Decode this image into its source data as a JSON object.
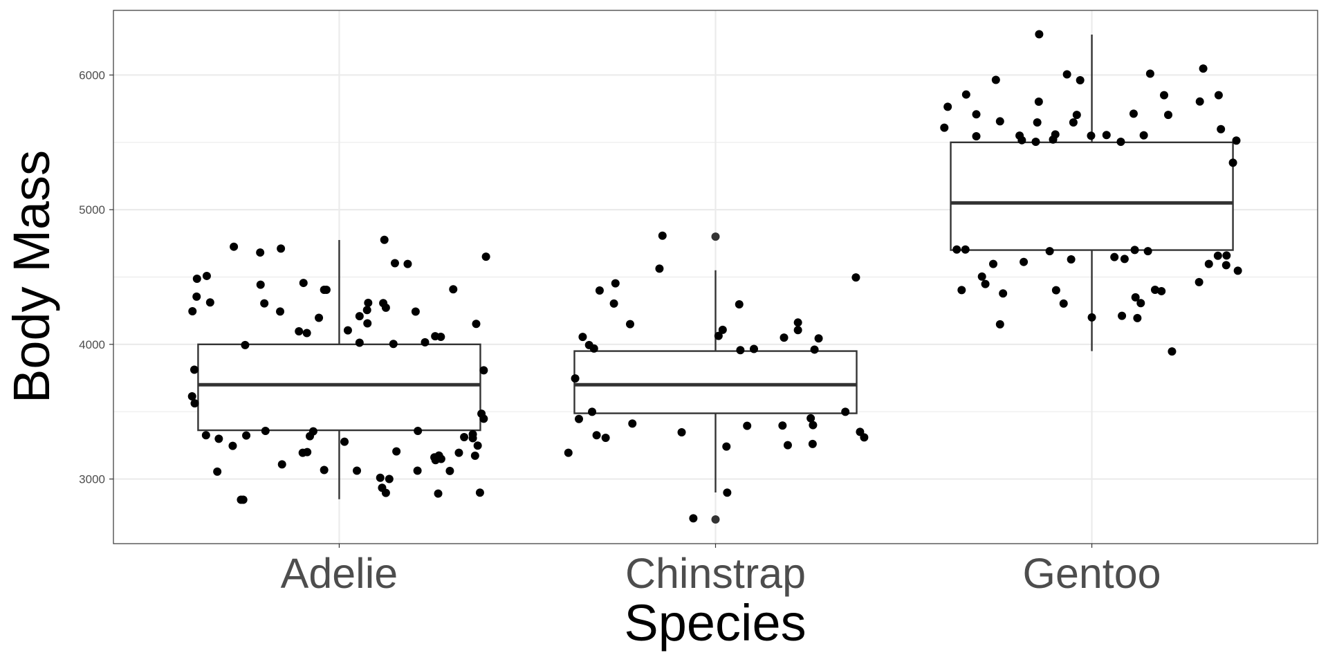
{
  "chart_data": {
    "type": "boxplot",
    "title": "",
    "xlabel": "Species",
    "ylabel": "Body Mass",
    "categories": [
      "Adelie",
      "Chinstrap",
      "Gentoo"
    ],
    "ylim": [
      2520,
      6480
    ],
    "xlim": [
      0.4,
      3.6
    ],
    "yticks": [
      3000,
      4000,
      5000,
      6000
    ],
    "ytick_labels": [
      "3000",
      "4000",
      "5000",
      "6000"
    ],
    "grid": true,
    "theme": "bw",
    "colors": {
      "box": "#333333",
      "point": "#000000",
      "outlier": "#333333",
      "grid": "#ebebeb",
      "tick_text": "#4d4d4d"
    },
    "boxes": [
      {
        "category": "Adelie",
        "lower_whisker": 2850,
        "q1": 3362,
        "median": 3700,
        "q3": 4000,
        "upper_whisker": 4775,
        "outliers": []
      },
      {
        "category": "Chinstrap",
        "lower_whisker": 2900,
        "q1": 3488,
        "median": 3700,
        "q3": 3950,
        "upper_whisker": 4550,
        "outliers": [
          4800,
          2700
        ]
      },
      {
        "category": "Gentoo",
        "lower_whisker": 3950,
        "q1": 4700,
        "median": 5050,
        "q3": 5500,
        "upper_whisker": 6300,
        "outliers": []
      }
    ],
    "jitter_points": {
      "Adelie": [
        [
          -0.28,
          4725
        ],
        [
          -0.21,
          4682
        ],
        [
          -0.155,
          4711
        ],
        [
          0.12,
          4776
        ],
        [
          0.39,
          4651
        ],
        [
          0.148,
          4603
        ],
        [
          0.182,
          4597
        ],
        [
          -0.378,
          4487
        ],
        [
          -0.352,
          4508
        ],
        [
          -0.209,
          4443
        ],
        [
          -0.095,
          4456
        ],
        [
          -0.04,
          4405
        ],
        [
          -0.034,
          4405
        ],
        [
          0.303,
          4409
        ],
        [
          -0.379,
          4354
        ],
        [
          -0.343,
          4311
        ],
        [
          -0.39,
          4246
        ],
        [
          -0.199,
          4304
        ],
        [
          -0.157,
          4244
        ],
        [
          0.077,
          4308
        ],
        [
          0.074,
          4255
        ],
        [
          0.117,
          4306
        ],
        [
          0.124,
          4272
        ],
        [
          0.203,
          4243
        ],
        [
          0.054,
          4209
        ],
        [
          -0.054,
          4197
        ],
        [
          0.075,
          4156
        ],
        [
          -0.107,
          4097
        ],
        [
          -0.086,
          4084
        ],
        [
          0.023,
          4104
        ],
        [
          0.364,
          4152
        ],
        [
          0.255,
          4060
        ],
        [
          0.27,
          4056
        ],
        [
          -0.25,
          3995
        ],
        [
          0.054,
          4012
        ],
        [
          0.144,
          4003
        ],
        [
          0.228,
          4015
        ],
        [
          -0.385,
          3812
        ],
        [
          0.384,
          3807
        ],
        [
          -0.391,
          3614
        ],
        [
          -0.384,
          3562
        ],
        [
          0.384,
          3448
        ],
        [
          0.378,
          3485
        ],
        [
          -0.354,
          3325
        ],
        [
          -0.32,
          3299
        ],
        [
          -0.283,
          3246
        ],
        [
          -0.247,
          3323
        ],
        [
          -0.196,
          3357
        ],
        [
          -0.078,
          3318
        ],
        [
          -0.069,
          3354
        ],
        [
          0.014,
          3277
        ],
        [
          0.209,
          3357
        ],
        [
          0.332,
          3311
        ],
        [
          0.355,
          3332
        ],
        [
          0.355,
          3303
        ],
        [
          0.368,
          3248
        ],
        [
          -0.097,
          3195
        ],
        [
          -0.085,
          3200
        ],
        [
          0.152,
          3205
        ],
        [
          0.253,
          3161
        ],
        [
          0.265,
          3174
        ],
        [
          0.271,
          3149
        ],
        [
          0.256,
          3140
        ],
        [
          0.318,
          3195
        ],
        [
          0.361,
          3173
        ],
        [
          -0.152,
          3109
        ],
        [
          -0.324,
          3055
        ],
        [
          -0.04,
          3067
        ],
        [
          0.047,
          3062
        ],
        [
          0.208,
          3062
        ],
        [
          0.294,
          3060
        ],
        [
          0.109,
          3009
        ],
        [
          0.133,
          3000
        ],
        [
          0.114,
          2935
        ],
        [
          0.124,
          2897
        ],
        [
          0.263,
          2892
        ],
        [
          0.374,
          2899
        ],
        [
          -0.261,
          2846
        ],
        [
          -0.255,
          2846
        ]
      ],
      "Chinstrap": [
        [
          -0.141,
          4807
        ],
        [
          -0.149,
          4562
        ],
        [
          0.373,
          4497
        ],
        [
          -0.266,
          4453
        ],
        [
          -0.308,
          4400
        ],
        [
          -0.27,
          4303
        ],
        [
          0.063,
          4297
        ],
        [
          -0.227,
          4150
        ],
        [
          0.219,
          4162
        ],
        [
          0.219,
          4106
        ],
        [
          0.019,
          4108
        ],
        [
          0.008,
          4063
        ],
        [
          -0.353,
          4055
        ],
        [
          0.182,
          4050
        ],
        [
          0.274,
          4044
        ],
        [
          -0.336,
          3995
        ],
        [
          -0.323,
          3969
        ],
        [
          0.066,
          3957
        ],
        [
          0.102,
          3966
        ],
        [
          0.263,
          3961
        ],
        [
          -0.373,
          3747
        ],
        [
          -0.328,
          3499
        ],
        [
          0.345,
          3499
        ],
        [
          -0.363,
          3446
        ],
        [
          -0.221,
          3412
        ],
        [
          0.084,
          3395
        ],
        [
          0.178,
          3397
        ],
        [
          0.253,
          3451
        ],
        [
          0.259,
          3400
        ],
        [
          -0.316,
          3325
        ],
        [
          -0.292,
          3306
        ],
        [
          -0.09,
          3347
        ],
        [
          0.384,
          3350
        ],
        [
          0.395,
          3309
        ],
        [
          -0.391,
          3195
        ],
        [
          0.029,
          3241
        ],
        [
          0.192,
          3251
        ],
        [
          0.258,
          3260
        ],
        [
          0.031,
          2899
        ],
        [
          -0.059,
          2708
        ]
      ],
      "Gentoo": [
        [
          -0.14,
          6303
        ],
        [
          0.296,
          6048
        ],
        [
          -0.066,
          6005
        ],
        [
          0.155,
          6010
        ],
        [
          -0.255,
          5964
        ],
        [
          -0.031,
          5961
        ],
        [
          -0.334,
          5855
        ],
        [
          0.192,
          5850
        ],
        [
          0.337,
          5850
        ],
        [
          -0.383,
          5764
        ],
        [
          -0.141,
          5802
        ],
        [
          0.287,
          5803
        ],
        [
          -0.307,
          5708
        ],
        [
          -0.04,
          5704
        ],
        [
          0.111,
          5713
        ],
        [
          0.203,
          5704
        ],
        [
          -0.244,
          5656
        ],
        [
          -0.145,
          5648
        ],
        [
          -0.049,
          5648
        ],
        [
          -0.392,
          5609
        ],
        [
          0.343,
          5598
        ],
        [
          -0.307,
          5545
        ],
        [
          -0.192,
          5550
        ],
        [
          -0.097,
          5559
        ],
        [
          -0.002,
          5549
        ],
        [
          0.039,
          5554
        ],
        [
          0.138,
          5552
        ],
        [
          0.384,
          5513
        ],
        [
          -0.186,
          5516
        ],
        [
          -0.149,
          5504
        ],
        [
          -0.103,
          5521
        ],
        [
          0.077,
          5504
        ],
        [
          0.375,
          5349
        ],
        [
          -0.359,
          4704
        ],
        [
          -0.336,
          4704
        ],
        [
          -0.112,
          4692
        ],
        [
          0.114,
          4701
        ],
        [
          0.149,
          4692
        ],
        [
          0.335,
          4658
        ],
        [
          0.358,
          4660
        ],
        [
          -0.262,
          4597
        ],
        [
          -0.181,
          4612
        ],
        [
          -0.055,
          4631
        ],
        [
          0.06,
          4648
        ],
        [
          0.087,
          4634
        ],
        [
          0.311,
          4597
        ],
        [
          0.357,
          4588
        ],
        [
          0.388,
          4547
        ],
        [
          -0.292,
          4503
        ],
        [
          -0.283,
          4448
        ],
        [
          0.285,
          4462
        ],
        [
          -0.346,
          4403
        ],
        [
          -0.236,
          4378
        ],
        [
          -0.095,
          4402
        ],
        [
          -0.075,
          4303
        ],
        [
          0.168,
          4405
        ],
        [
          0.185,
          4395
        ],
        [
          0.116,
          4349
        ],
        [
          0.13,
          4306
        ],
        [
          -0.244,
          4149
        ],
        [
          0,
          4200
        ],
        [
          0.08,
          4212
        ],
        [
          0.121,
          4195
        ],
        [
          0.213,
          3947
        ]
      ]
    }
  }
}
